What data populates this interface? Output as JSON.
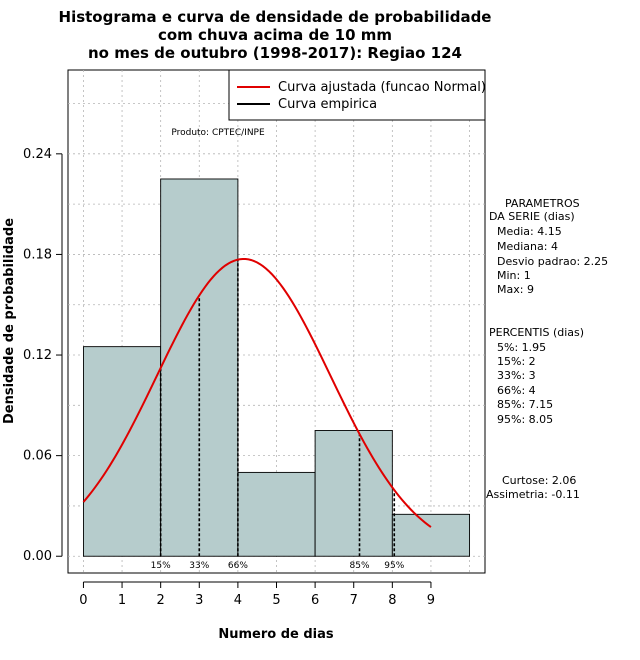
{
  "chart_data": {
    "type": "bar",
    "title_lines": [
      "Histograma e curva de densidade de probabilidade",
      "com chuva acima de 10 mm",
      "no mes de outubro (1998-2017): Regiao 124"
    ],
    "xlabel": "Numero de dias",
    "ylabel": "Densidade de probabilidade",
    "xlim": [
      -0.4,
      10.4
    ],
    "ylim": [
      -0.01,
      0.29
    ],
    "x_ticks": [
      0,
      1,
      2,
      3,
      4,
      5,
      6,
      7,
      8,
      9
    ],
    "y_ticks": [
      0.0,
      0.06,
      0.12,
      0.18,
      0.24
    ],
    "y_tick_labels": [
      "0.00",
      "0.06",
      "0.12",
      "0.18",
      "0.24"
    ],
    "bars": [
      {
        "x0": 0,
        "x1": 2,
        "value": 0.125
      },
      {
        "x0": 2,
        "x1": 4,
        "value": 0.225
      },
      {
        "x0": 4,
        "x1": 6,
        "value": 0.05
      },
      {
        "x0": 6,
        "x1": 8,
        "value": 0.075
      },
      {
        "x0": 8,
        "x1": 10,
        "value": 0.025
      }
    ],
    "normal_curve": {
      "mean": 4.15,
      "sd": 2.25,
      "x_start": 0,
      "x_end": 9.0
    },
    "percentile_lines": [
      {
        "label": "15%",
        "x": 2
      },
      {
        "label": "33%",
        "x": 3
      },
      {
        "label": "66%",
        "x": 4
      },
      {
        "label": "85%",
        "x": 7.15
      },
      {
        "label": "95%",
        "x": 8.05
      }
    ],
    "legend": {
      "placement": "top-right",
      "entries": [
        {
          "label": "Curva ajustada (funcao Normal)",
          "color": "#e00000"
        },
        {
          "label": "Curva empirica",
          "color": "#000000"
        }
      ]
    },
    "credit": "Produto: CPTEC/INPE",
    "grid": true,
    "bar_color": "#b6cccc",
    "curve_color": "#e00000"
  },
  "side_panel": {
    "parametros": [
      "PARAMETROS",
      "DA SERIE (dias)",
      "Media: 4.15",
      "Mediana: 4",
      "Desvio padrao: 2.25",
      "Min: 1",
      "Max: 9"
    ],
    "percentis": [
      "PERCENTIS (dias)",
      "5%: 1.95",
      "15%: 2",
      "33%: 3",
      "66%: 4",
      "85%: 7.15",
      "95%: 8.05"
    ],
    "curtose": "Curtose: 2.06",
    "assimetria": "Assimetria: -0.11"
  }
}
